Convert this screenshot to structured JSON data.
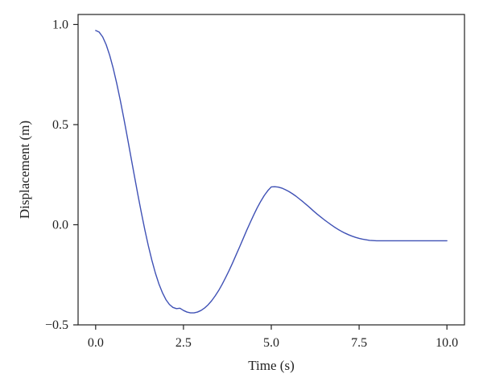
{
  "chart_data": {
    "type": "line",
    "xlabel": "Time (s)",
    "ylabel": "Displacement (m)",
    "xlim": [
      -0.5,
      10.5
    ],
    "ylim": [
      -0.5,
      1.05
    ],
    "xticks": [
      0.0,
      2.5,
      5.0,
      7.5,
      10.0
    ],
    "xtick_labels": [
      "0.0",
      "2.5",
      "5.0",
      "7.5",
      "10.0"
    ],
    "yticks": [
      -0.5,
      0.0,
      0.5,
      1.0
    ],
    "ytick_labels": [
      "−0.5",
      "0.0",
      "0.5",
      "1.0"
    ],
    "grid": false,
    "legend": null,
    "series": [
      {
        "color": "#3f51b5",
        "x": [
          0.0,
          0.1,
          0.2,
          0.3,
          0.4,
          0.5,
          0.6,
          0.7,
          0.8,
          0.9,
          1.0,
          1.1,
          1.2,
          1.3,
          1.4,
          1.5,
          1.6,
          1.7,
          1.8,
          1.9,
          2.0,
          2.1,
          2.2,
          2.3,
          2.4,
          2.5,
          2.6,
          2.7,
          2.8,
          2.9,
          3.0,
          3.1,
          3.2,
          3.3,
          3.4,
          3.5,
          3.6,
          3.7,
          3.8,
          3.9,
          4.0,
          4.1,
          4.2,
          4.3,
          4.4,
          4.5,
          4.6,
          4.7,
          4.8,
          4.9,
          5.0,
          5.1,
          5.2,
          5.3,
          5.4,
          5.5,
          5.6,
          5.7,
          5.8,
          5.9,
          6.0,
          6.1,
          6.2,
          6.3,
          6.4,
          6.5,
          6.6,
          6.7,
          6.8,
          6.9,
          7.0,
          7.1,
          7.2,
          7.3,
          7.4,
          7.5,
          7.6,
          7.7,
          7.8,
          7.9,
          8.0,
          8.1,
          8.2,
          8.3,
          8.4,
          8.5,
          8.6,
          8.7,
          8.8,
          8.9,
          9.0,
          9.1,
          9.2,
          9.3,
          9.4,
          9.5,
          9.6,
          9.7,
          9.8,
          9.9,
          10.0
        ],
        "y": [
          0.97,
          0.962,
          0.938,
          0.899,
          0.846,
          0.781,
          0.706,
          0.623,
          0.533,
          0.439,
          0.343,
          0.247,
          0.152,
          0.061,
          -0.025,
          -0.105,
          -0.177,
          -0.241,
          -0.295,
          -0.339,
          -0.374,
          -0.398,
          -0.413,
          -0.419,
          -0.417,
          -0.428,
          -0.436,
          -0.44,
          -0.44,
          -0.436,
          -0.428,
          -0.416,
          -0.4,
          -0.38,
          -0.356,
          -0.329,
          -0.298,
          -0.264,
          -0.228,
          -0.19,
          -0.15,
          -0.11,
          -0.069,
          -0.028,
          0.011,
          0.049,
          0.085,
          0.117,
          0.146,
          0.17,
          0.189,
          0.19,
          0.188,
          0.183,
          0.175,
          0.166,
          0.155,
          0.143,
          0.129,
          0.115,
          0.1,
          0.085,
          0.069,
          0.054,
          0.04,
          0.026,
          0.013,
          0.0,
          -0.012,
          -0.023,
          -0.033,
          -0.042,
          -0.05,
          -0.057,
          -0.063,
          -0.068,
          -0.072,
          -0.075,
          -0.078,
          -0.079,
          -0.08,
          -0.08,
          -0.08,
          -0.08,
          -0.08,
          -0.08,
          -0.08,
          -0.08,
          -0.08,
          -0.08,
          -0.08,
          -0.08,
          -0.08,
          -0.08,
          -0.08,
          -0.08,
          -0.08,
          -0.08,
          -0.08,
          -0.08,
          -0.08
        ]
      }
    ]
  }
}
